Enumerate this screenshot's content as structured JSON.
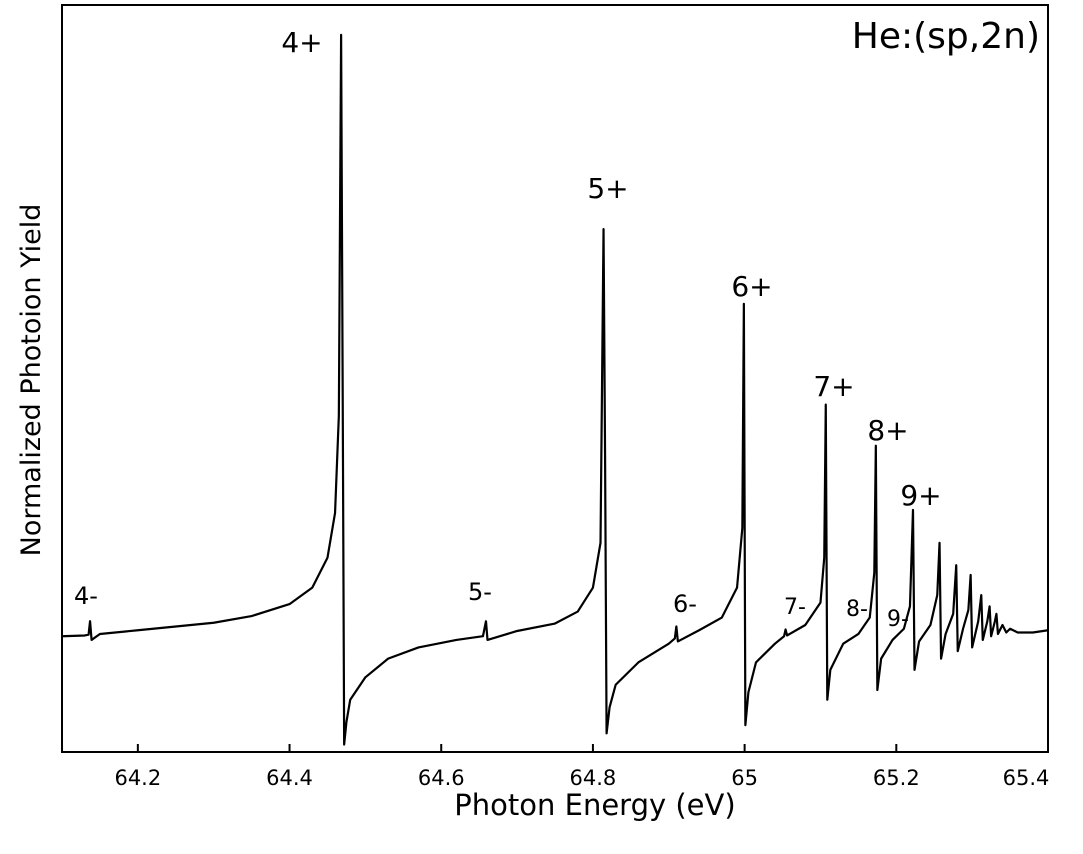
{
  "chart_data": {
    "type": "line",
    "title": "He:(sp,2n)",
    "x_label": "Photon Energy (eV)",
    "y_label": "Normalized Photoion Yield",
    "xlim": [
      64.1,
      65.4
    ],
    "xticks": [
      64.2,
      64.4,
      64.6,
      64.8,
      65,
      65.2,
      65.4
    ],
    "ylim": [
      0,
      100
    ],
    "color": "#000000",
    "annotations": [
      "4+",
      "4-",
      "5+",
      "5-",
      "6+",
      "6-",
      "7+",
      "7-",
      "8+",
      "8-",
      "9+",
      "9-"
    ],
    "x": [
      64.1,
      64.13,
      64.135,
      64.137,
      64.139,
      64.15,
      64.2,
      64.25,
      64.3,
      64.35,
      64.4,
      64.43,
      64.45,
      64.46,
      64.465,
      64.468,
      64.47,
      64.472,
      64.475,
      64.48,
      64.5,
      64.53,
      64.57,
      64.62,
      64.655,
      64.659,
      64.661,
      64.7,
      64.75,
      64.78,
      64.8,
      64.81,
      64.814,
      64.816,
      64.818,
      64.822,
      64.83,
      64.86,
      64.9,
      64.908,
      64.91,
      64.912,
      64.94,
      64.97,
      64.99,
      64.997,
      64.999,
      65.001,
      65.005,
      65.015,
      65.04,
      65.052,
      65.054,
      65.056,
      65.08,
      65.1,
      65.105,
      65.107,
      65.109,
      65.113,
      65.13,
      65.15,
      65.165,
      65.171,
      65.173,
      65.175,
      65.18,
      65.195,
      65.21,
      65.218,
      65.222,
      65.224,
      65.23,
      65.245,
      65.254,
      65.257,
      65.259,
      65.265,
      65.275,
      65.279,
      65.281,
      65.288,
      65.295,
      65.298,
      65.3,
      65.308,
      65.312,
      65.314,
      65.32,
      65.323,
      65.325,
      65.33,
      65.332,
      65.334,
      65.34,
      65.345,
      65.35,
      65.36,
      65.38,
      65.4
    ],
    "values": [
      15.5,
      15.6,
      15.7,
      17.5,
      15.0,
      15.8,
      16.3,
      16.8,
      17.3,
      18.2,
      19.8,
      22,
      26,
      32,
      45,
      96,
      50,
      1,
      4,
      7,
      10,
      12.5,
      14,
      15,
      15.5,
      17.5,
      15.0,
      16.2,
      17.2,
      18.8,
      22,
      28,
      70,
      40,
      2.5,
      6,
      9,
      12,
      14.5,
      15.2,
      16.8,
      14.8,
      16.3,
      18,
      22,
      30,
      60,
      3.6,
      8,
      12,
      14.5,
      15.5,
      16.4,
      15.6,
      17,
      20,
      26,
      46.5,
      7,
      11,
      14.5,
      15.8,
      18,
      24,
      41,
      8.3,
      12.5,
      15,
      16.5,
      19.5,
      32.4,
      11,
      14.8,
      17,
      21,
      28,
      12.5,
      15.8,
      18.5,
      25,
      13.5,
      16.5,
      19,
      23.7,
      14,
      17.5,
      21,
      15,
      17.5,
      19.5,
      15.5,
      17.5,
      18.5,
      15.8,
      17,
      16,
      16.5,
      16,
      16,
      16.3
    ]
  }
}
